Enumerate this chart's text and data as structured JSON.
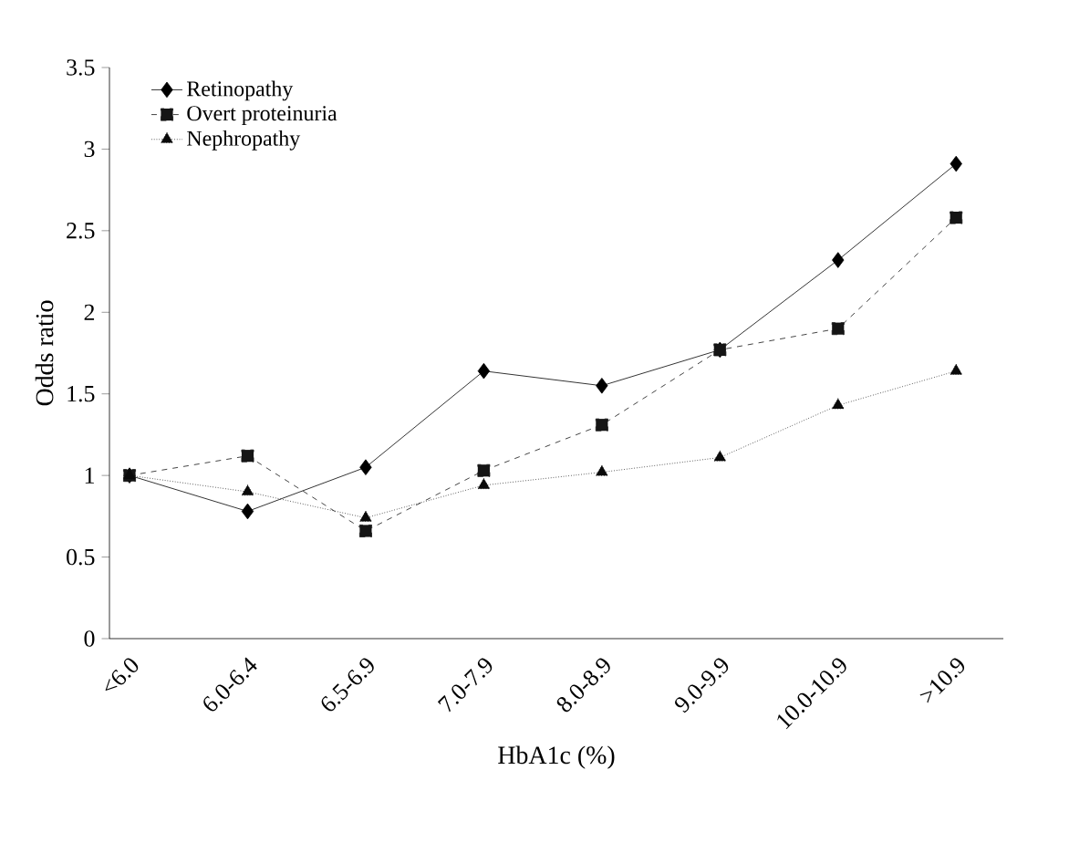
{
  "chart_data": {
    "type": "line",
    "xlabel": "HbA1c (%)",
    "ylabel": "Odds ratio",
    "categories": [
      "<6.0",
      "6.0-6.4",
      "6.5-6.9",
      "7.0-7.9",
      "8.0-8.9",
      "9.0-9.9",
      "10.0-10.9",
      ">10.9"
    ],
    "series": [
      {
        "name": "Retinopathy",
        "color": "#000000",
        "marker": "diamond",
        "line_style": "solid",
        "values": [
          1.0,
          0.78,
          1.05,
          1.64,
          1.55,
          1.77,
          2.32,
          2.91
        ]
      },
      {
        "name": "Overt proteinuria",
        "color": "#151515",
        "marker": "square",
        "line_style": "dashed",
        "values": [
          1.0,
          1.12,
          0.66,
          1.03,
          1.31,
          1.77,
          1.9,
          2.58
        ]
      },
      {
        "name": "Nephropathy",
        "color": "#0a0a0a",
        "marker": "triangle",
        "line_style": "dotted",
        "values": [
          1.0,
          0.9,
          0.74,
          0.94,
          1.02,
          1.11,
          1.43,
          1.64
        ]
      }
    ],
    "ylim": [
      0,
      3.5
    ],
    "yticks": [
      0,
      0.5,
      1,
      1.5,
      2,
      2.5,
      3,
      3.5
    ],
    "grid": false,
    "legend": "top left"
  }
}
